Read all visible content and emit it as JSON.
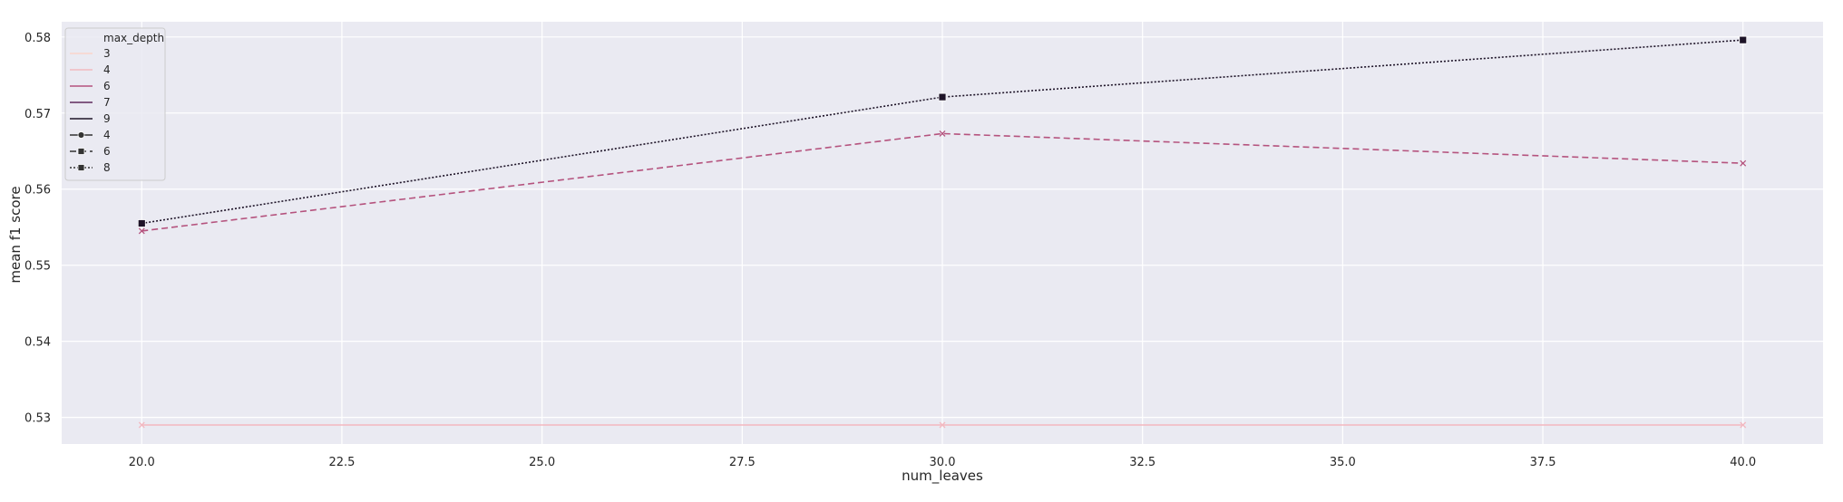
{
  "chart_data": {
    "type": "line",
    "xlabel": "num_leaves",
    "ylabel": "mean f1 score",
    "xlim": [
      19.0,
      41.0
    ],
    "ylim": [
      0.5265,
      0.582
    ],
    "x_ticks": [
      20.0,
      22.5,
      25.0,
      27.5,
      30.0,
      32.5,
      35.0,
      37.5,
      40.0
    ],
    "x_tick_labels": [
      "20.0",
      "22.5",
      "25.0",
      "27.5",
      "30.0",
      "32.5",
      "35.0",
      "37.5",
      "40.0"
    ],
    "y_ticks": [
      0.53,
      0.54,
      0.55,
      0.56,
      0.57,
      0.58
    ],
    "y_tick_labels": [
      "0.53",
      "0.54",
      "0.55",
      "0.56",
      "0.57",
      "0.58"
    ],
    "grid": true,
    "background": "#eaeaf2",
    "legend": {
      "placement": "upper-left",
      "title": "max_depth",
      "entries": [
        {
          "label": "3",
          "color": "#f9d4cb",
          "line": "solid",
          "marker": "none"
        },
        {
          "label": "4",
          "color": "#f1b9c0",
          "line": "solid",
          "marker": "none"
        },
        {
          "label": "6",
          "color": "#b5537e",
          "line": "solid",
          "marker": "none"
        },
        {
          "label": "7",
          "color": "#5e2b5c",
          "line": "solid",
          "marker": "none"
        },
        {
          "label": "9",
          "color": "#1e1428",
          "line": "solid",
          "marker": "none"
        },
        {
          "label": "4",
          "color": "#333333",
          "line": "solid",
          "marker": "circle"
        },
        {
          "label": "6",
          "color": "#333333",
          "line": "dashed",
          "marker": "square"
        },
        {
          "label": "8",
          "color": "#333333",
          "line": "dotted",
          "marker": "square"
        }
      ]
    },
    "series": [
      {
        "color": "#f3b8c0",
        "line": "solid",
        "marker": "x",
        "x": [
          20.0,
          30.0,
          40.0
        ],
        "y": [
          0.529,
          0.529,
          0.529
        ]
      },
      {
        "color": "#b5537e",
        "line": "dashed",
        "marker": "x",
        "x": [
          20.0,
          30.0,
          40.0
        ],
        "y": [
          0.5545,
          0.5673,
          0.5634
        ]
      },
      {
        "color": "#1e1428",
        "line": "dotted",
        "marker": "square",
        "x": [
          20.0,
          30.0,
          40.0
        ],
        "y": [
          0.5555,
          0.5721,
          0.5796
        ]
      }
    ]
  }
}
